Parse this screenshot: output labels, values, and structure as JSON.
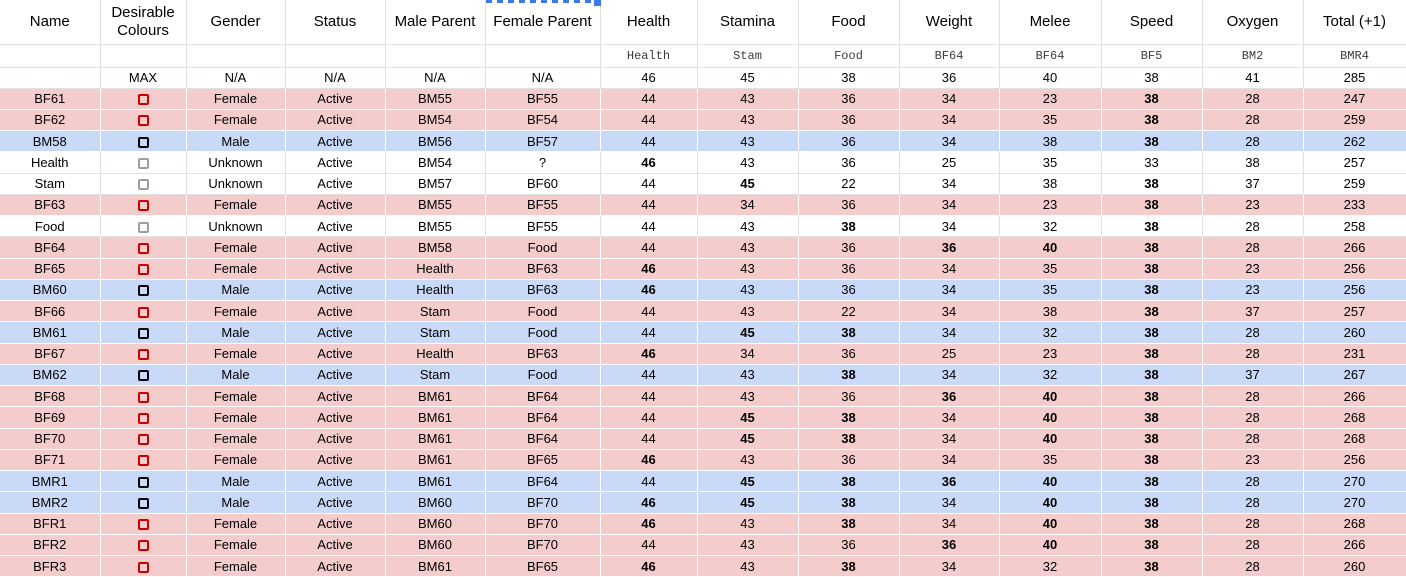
{
  "colors": {
    "female_row": "#f4cccc",
    "male_row": "#c9daf8",
    "highlight": "#ffff00",
    "gridline": "#e0e0e0",
    "selection_accent": "#3b78e8",
    "checkbox_female": "#cc0000",
    "checkbox_male": "#000000",
    "checkbox_unknown": "#9e9e9e"
  },
  "selection_marker": {
    "description": "dashed blue copy-selection border with solid fill handle at top of Female Parent column"
  },
  "table": {
    "columns": [
      "Name",
      "Desirable Colours",
      "Gender",
      "Status",
      "Male Parent",
      "Female Parent",
      "Health",
      "Stamina",
      "Food",
      "Weight",
      "Melee",
      "Speed",
      "Oxygen",
      "Total (+1)"
    ],
    "subheader": [
      "",
      "",
      "",
      "",
      "",
      "",
      "Health",
      "Stam",
      "Food",
      "BF64",
      "BF64",
      "BF5",
      "BM2",
      "BMR4"
    ],
    "max_row": [
      "",
      "MAX",
      "N/A",
      "N/A",
      "N/A",
      "N/A",
      "46",
      "45",
      "38",
      "36",
      "40",
      "38",
      "41",
      "285"
    ],
    "stat_keys": [
      "health",
      "stamina",
      "food",
      "weight",
      "melee",
      "speed",
      "oxygen",
      "total"
    ],
    "rows": [
      {
        "name": "BF61",
        "row_style": "female",
        "gender": "Female",
        "status": "Active",
        "male_parent": "BM55",
        "female_parent": "BF55",
        "values": [
          44,
          43,
          36,
          34,
          23,
          38,
          28,
          247
        ],
        "highlight": [
          5
        ]
      },
      {
        "name": "BF62",
        "row_style": "female",
        "gender": "Female",
        "status": "Active",
        "male_parent": "BM54",
        "female_parent": "BF54",
        "values": [
          44,
          43,
          36,
          34,
          35,
          38,
          28,
          259
        ],
        "highlight": [
          5
        ]
      },
      {
        "name": "BM58",
        "row_style": "male",
        "gender": "Male",
        "status": "Active",
        "male_parent": "BM56",
        "female_parent": "BF57",
        "values": [
          44,
          43,
          36,
          34,
          38,
          38,
          28,
          262
        ],
        "highlight": [
          5
        ]
      },
      {
        "name": "Health",
        "row_style": "unknown",
        "gender": "Unknown",
        "status": "Active",
        "male_parent": "BM54",
        "female_parent": "?",
        "values": [
          46,
          43,
          36,
          25,
          35,
          33,
          38,
          257
        ],
        "highlight": [
          0
        ]
      },
      {
        "name": "Stam",
        "row_style": "unknown",
        "gender": "Unknown",
        "status": "Active",
        "male_parent": "BM57",
        "female_parent": "BF60",
        "values": [
          44,
          45,
          22,
          34,
          38,
          38,
          37,
          259
        ],
        "highlight": [
          1,
          5
        ]
      },
      {
        "name": "BF63",
        "row_style": "female",
        "gender": "Female",
        "status": "Active",
        "male_parent": "BM55",
        "female_parent": "BF55",
        "values": [
          44,
          34,
          36,
          34,
          23,
          38,
          23,
          233
        ],
        "highlight": [
          5
        ]
      },
      {
        "name": "Food",
        "row_style": "unknown",
        "gender": "Unknown",
        "status": "Active",
        "male_parent": "BM55",
        "female_parent": "BF55",
        "values": [
          44,
          43,
          38,
          34,
          32,
          38,
          28,
          258
        ],
        "highlight": [
          2,
          5
        ]
      },
      {
        "name": "BF64",
        "row_style": "female",
        "gender": "Female",
        "status": "Active",
        "male_parent": "BM58",
        "female_parent": "Food",
        "values": [
          44,
          43,
          36,
          36,
          40,
          38,
          28,
          266
        ],
        "highlight": [
          3,
          4,
          5
        ]
      },
      {
        "name": "BF65",
        "row_style": "female",
        "gender": "Female",
        "status": "Active",
        "male_parent": "Health",
        "female_parent": "BF63",
        "values": [
          46,
          43,
          36,
          34,
          35,
          38,
          23,
          256
        ],
        "highlight": [
          0,
          5
        ]
      },
      {
        "name": "BM60",
        "row_style": "male",
        "gender": "Male",
        "status": "Active",
        "male_parent": "Health",
        "female_parent": "BF63",
        "values": [
          46,
          43,
          36,
          34,
          35,
          38,
          23,
          256
        ],
        "highlight": [
          0,
          5
        ]
      },
      {
        "name": "BF66",
        "row_style": "female",
        "gender": "Female",
        "status": "Active",
        "male_parent": "Stam",
        "female_parent": "Food",
        "values": [
          44,
          43,
          22,
          34,
          38,
          38,
          37,
          257
        ],
        "highlight": [
          5
        ]
      },
      {
        "name": "BM61",
        "row_style": "male",
        "gender": "Male",
        "status": "Active",
        "male_parent": "Stam",
        "female_parent": "Food",
        "values": [
          44,
          45,
          38,
          34,
          32,
          38,
          28,
          260
        ],
        "highlight": [
          1,
          2,
          5
        ]
      },
      {
        "name": "BF67",
        "row_style": "female",
        "gender": "Female",
        "status": "Active",
        "male_parent": "Health",
        "female_parent": "BF63",
        "values": [
          46,
          34,
          36,
          25,
          23,
          38,
          28,
          231
        ],
        "highlight": [
          0,
          5
        ]
      },
      {
        "name": "BM62",
        "row_style": "male",
        "gender": "Male",
        "status": "Active",
        "male_parent": "Stam",
        "female_parent": "Food",
        "values": [
          44,
          43,
          38,
          34,
          32,
          38,
          37,
          267
        ],
        "highlight": [
          2,
          5
        ]
      },
      {
        "name": "BF68",
        "row_style": "female",
        "gender": "Female",
        "status": "Active",
        "male_parent": "BM61",
        "female_parent": "BF64",
        "values": [
          44,
          43,
          36,
          36,
          40,
          38,
          28,
          266
        ],
        "highlight": [
          3,
          4,
          5
        ]
      },
      {
        "name": "BF69",
        "row_style": "female",
        "gender": "Female",
        "status": "Active",
        "male_parent": "BM61",
        "female_parent": "BF64",
        "values": [
          44,
          45,
          38,
          34,
          40,
          38,
          28,
          268
        ],
        "highlight": [
          1,
          2,
          4,
          5
        ]
      },
      {
        "name": "BF70",
        "row_style": "female",
        "gender": "Female",
        "status": "Active",
        "male_parent": "BM61",
        "female_parent": "BF64",
        "values": [
          44,
          45,
          38,
          34,
          40,
          38,
          28,
          268
        ],
        "highlight": [
          1,
          2,
          4,
          5
        ]
      },
      {
        "name": "BF71",
        "row_style": "female",
        "gender": "Female",
        "status": "Active",
        "male_parent": "BM61",
        "female_parent": "BF65",
        "values": [
          46,
          43,
          36,
          34,
          35,
          38,
          23,
          256
        ],
        "highlight": [
          0,
          5
        ]
      },
      {
        "name": "BMR1",
        "row_style": "male",
        "gender": "Male",
        "status": "Active",
        "male_parent": "BM61",
        "female_parent": "BF64",
        "values": [
          44,
          45,
          38,
          36,
          40,
          38,
          28,
          270
        ],
        "highlight": [
          1,
          2,
          3,
          4,
          5
        ]
      },
      {
        "name": "BMR2",
        "row_style": "male",
        "gender": "Male",
        "status": "Active",
        "male_parent": "BM60",
        "female_parent": "BF70",
        "values": [
          46,
          45,
          38,
          34,
          40,
          38,
          28,
          270
        ],
        "highlight": [
          0,
          1,
          2,
          4,
          5
        ]
      },
      {
        "name": "BFR1",
        "row_style": "female",
        "gender": "Female",
        "status": "Active",
        "male_parent": "BM60",
        "female_parent": "BF70",
        "values": [
          46,
          43,
          38,
          34,
          40,
          38,
          28,
          268
        ],
        "highlight": [
          0,
          2,
          4,
          5
        ]
      },
      {
        "name": "BFR2",
        "row_style": "female",
        "gender": "Female",
        "status": "Active",
        "male_parent": "BM60",
        "female_parent": "BF70",
        "values": [
          44,
          43,
          36,
          36,
          40,
          38,
          28,
          266
        ],
        "highlight": [
          3,
          4,
          5
        ]
      },
      {
        "name": "BFR3",
        "row_style": "female",
        "gender": "Female",
        "status": "Active",
        "male_parent": "BM61",
        "female_parent": "BF65",
        "values": [
          46,
          43,
          38,
          34,
          32,
          38,
          28,
          260
        ],
        "highlight": [
          0,
          2,
          5
        ]
      }
    ]
  }
}
